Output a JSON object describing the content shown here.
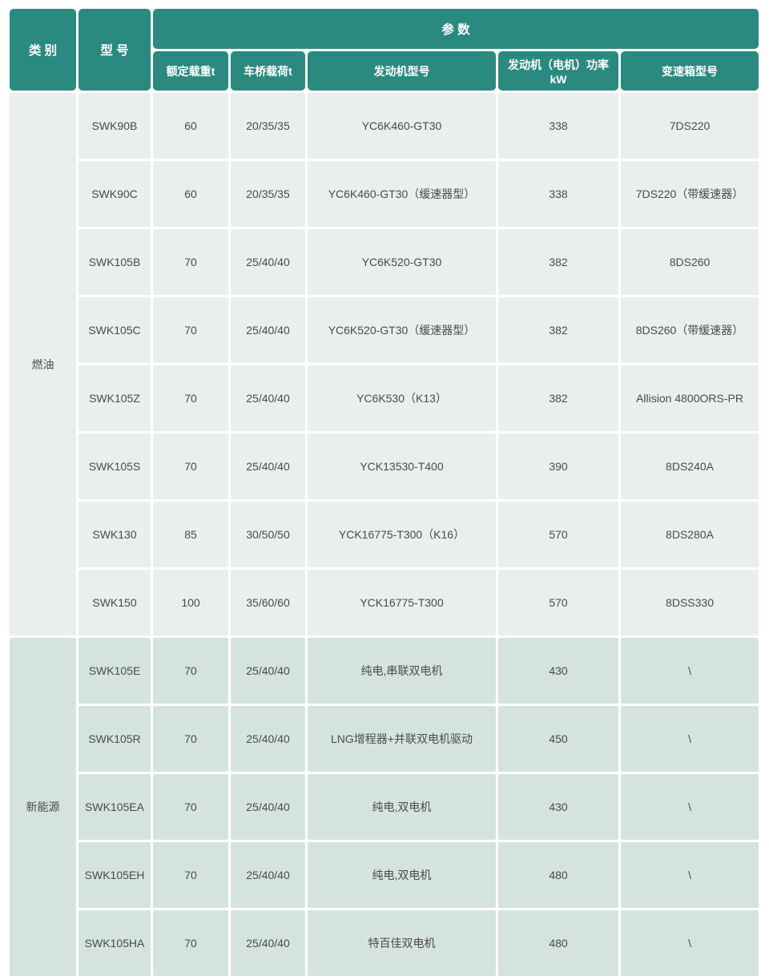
{
  "colors": {
    "header_bg": "#2a8a80",
    "header_text": "#ffffff",
    "fuel_row_bg": "#e9efed",
    "new_energy_row_bg": "#d5e3e0",
    "cell_text": "#4a4a4a",
    "grid_gap": "#ffffff"
  },
  "table": {
    "header": {
      "category": "类 别",
      "model": "型 号",
      "params": "参 数",
      "sub_columns": [
        "额定载重t",
        "车桥载荷t",
        "发动机型号",
        "发动机（电机）功率kW",
        "变速箱型号"
      ]
    },
    "groups": [
      {
        "label": "燃油",
        "rows": [
          [
            "SWK90B",
            "60",
            "20/35/35",
            "YC6K460-GT30",
            "338",
            "7DS220"
          ],
          [
            "SWK90C",
            "60",
            "20/35/35",
            "YC6K460-GT30（缓速器型）",
            "338",
            "7DS220（带缓速器）"
          ],
          [
            "SWK105B",
            "70",
            "25/40/40",
            "YC6K520-GT30",
            "382",
            "8DS260"
          ],
          [
            "SWK105C",
            "70",
            "25/40/40",
            "YC6K520-GT30（缓速器型）",
            "382",
            "8DS260（带缓速器）"
          ],
          [
            "SWK105Z",
            "70",
            "25/40/40",
            "YC6K530（K13）",
            "382",
            "Allision 4800ORS-PR"
          ],
          [
            "SWK105S",
            "70",
            "25/40/40",
            "YCK13530-T400",
            "390",
            "8DS240A"
          ],
          [
            "SWK130",
            "85",
            "30/50/50",
            "YCK16775-T300（K16）",
            "570",
            "8DS280A"
          ],
          [
            "SWK150",
            "100",
            "35/60/60",
            "YCK16775-T300",
            "570",
            "8DSS330"
          ]
        ]
      },
      {
        "label": "新能源",
        "rows": [
          [
            "SWK105E",
            "70",
            "25/40/40",
            "纯电,串联双电机",
            "430",
            "\\"
          ],
          [
            "SWK105R",
            "70",
            "25/40/40",
            "LNG增程器+并联双电机驱动",
            "450",
            "\\"
          ],
          [
            "SWK105EA",
            "70",
            "25/40/40",
            "纯电,双电机",
            "430",
            "\\"
          ],
          [
            "SWK105EH",
            "70",
            "25/40/40",
            "纯电,双电机",
            "480",
            "\\"
          ],
          [
            "SWK105HA",
            "70",
            "25/40/40",
            "特百佳双电机",
            "480",
            "\\"
          ]
        ]
      }
    ]
  },
  "chart_data": {
    "type": "table",
    "title": "参 数",
    "columns": [
      "类别",
      "型号",
      "额定载重t",
      "车桥载荷t",
      "发动机型号",
      "发动机（电机）功率kW",
      "变速箱型号"
    ],
    "rows": [
      [
        "燃油",
        "SWK90B",
        "60",
        "20/35/35",
        "YC6K460-GT30",
        "338",
        "7DS220"
      ],
      [
        "燃油",
        "SWK90C",
        "60",
        "20/35/35",
        "YC6K460-GT30（缓速器型）",
        "338",
        "7DS220（带缓速器）"
      ],
      [
        "燃油",
        "SWK105B",
        "70",
        "25/40/40",
        "YC6K520-GT30",
        "382",
        "8DS260"
      ],
      [
        "燃油",
        "SWK105C",
        "70",
        "25/40/40",
        "YC6K520-GT30（缓速器型）",
        "382",
        "8DS260（带缓速器）"
      ],
      [
        "燃油",
        "SWK105Z",
        "70",
        "25/40/40",
        "YC6K530（K13）",
        "382",
        "Allision 4800ORS-PR"
      ],
      [
        "燃油",
        "SWK105S",
        "70",
        "25/40/40",
        "YCK13530-T400",
        "390",
        "8DS240A"
      ],
      [
        "燃油",
        "SWK130",
        "85",
        "30/50/50",
        "YCK16775-T300（K16）",
        "570",
        "8DS280A"
      ],
      [
        "燃油",
        "SWK150",
        "100",
        "35/60/60",
        "YCK16775-T300",
        "570",
        "8DSS330"
      ],
      [
        "新能源",
        "SWK105E",
        "70",
        "25/40/40",
        "纯电,串联双电机",
        "430",
        "\\"
      ],
      [
        "新能源",
        "SWK105R",
        "70",
        "25/40/40",
        "LNG增程器+并联双电机驱动",
        "450",
        "\\"
      ],
      [
        "新能源",
        "SWK105EA",
        "70",
        "25/40/40",
        "纯电,双电机",
        "430",
        "\\"
      ],
      [
        "新能源",
        "SWK105EH",
        "70",
        "25/40/40",
        "纯电,双电机",
        "480",
        "\\"
      ],
      [
        "新能源",
        "SWK105HA",
        "70",
        "25/40/40",
        "特百佳双电机",
        "480",
        "\\"
      ]
    ]
  }
}
